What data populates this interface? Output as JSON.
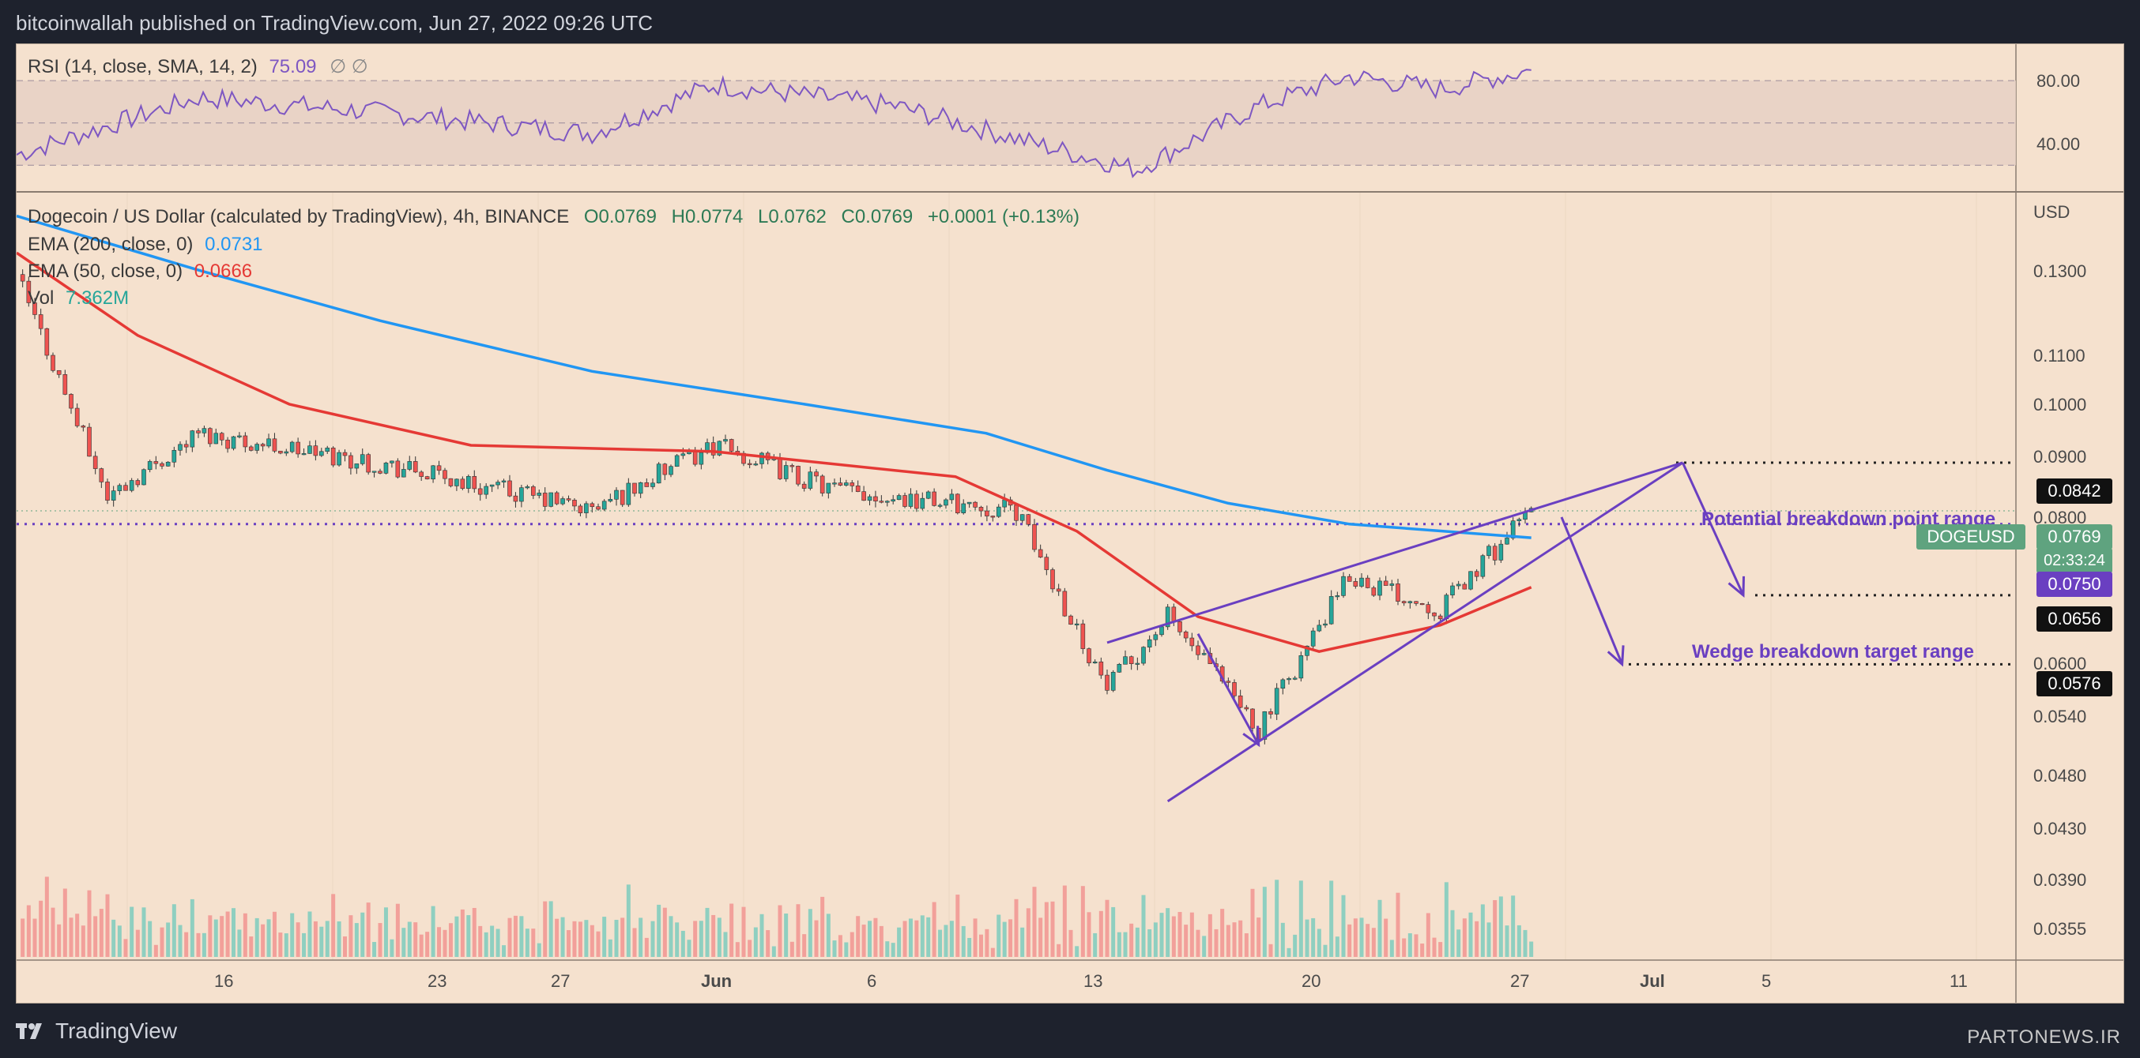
{
  "header": {
    "publisher": "bitcoinwallah published on TradingView.com, Jun 27, 2022 09:26 UTC"
  },
  "footer": {
    "brand": "TradingView",
    "watermark": "PARTONEWS.IR"
  },
  "rsi_panel": {
    "label": "RSI (14, close, SMA, 14, 2)",
    "value": "75.09",
    "suffix": "∅  ∅",
    "levels": [
      "80.00",
      "40.00"
    ],
    "band": [
      30,
      70
    ],
    "mid": 50
  },
  "main_panel": {
    "title": "Dogecoin / US Dollar (calculated by TradingView), 4h, BINANCE",
    "ohlc": {
      "o": "O0.0769",
      "h": "H0.0774",
      "l": "L0.0762",
      "c": "C0.0769",
      "chg": "+0.0001 (+0.13%)"
    },
    "ema200": {
      "label": "EMA (200, close, 0)",
      "value": "0.0731",
      "color": "#2196f3"
    },
    "ema50": {
      "label": "EMA (50, close, 0)",
      "value": "0.0666",
      "color": "#e53935"
    },
    "vol": {
      "label": "Vol",
      "value": "7.362M",
      "color": "#26a69a"
    },
    "currency": "USD",
    "price_ticks": [
      "0.1300",
      "0.1100",
      "0.1000",
      "0.0900",
      "0.0800",
      "0.0600",
      "0.0540",
      "0.0480",
      "0.0430",
      "0.0390",
      "0.0355"
    ],
    "time_ticks": [
      "16",
      "23",
      "27",
      "Jun",
      "6",
      "13",
      "20",
      "27",
      "Jul",
      "5",
      "11"
    ],
    "price_tags": {
      "level_0842": "0.0842",
      "symbol": "DOGEUSD",
      "last": "0.0769",
      "countdown": "02:33:24",
      "level_0750": "0.0750",
      "level_0656": "0.0656",
      "level_0576": "0.0576"
    },
    "annotations": {
      "breakdown_point": "Potential breakdown point range",
      "target": "Wedge breakdown target range"
    },
    "colors": {
      "up": "#26a69a",
      "down": "#ef5350",
      "wedge": "#6a3fc1",
      "background": "#f5e1ce"
    }
  },
  "chart_data": {
    "type": "line",
    "x_axis": "date (4h candles)",
    "y_axis_scale": "log",
    "ylim": [
      0.033,
      0.14
    ],
    "series": [
      {
        "name": "EMA (200, close, 0)",
        "points": [
          [
            "May 8",
            0.134
          ],
          [
            "May 14",
            0.121
          ],
          [
            "May 20",
            0.11
          ],
          [
            "May 27",
            0.1
          ],
          [
            "Jun 3",
            0.094
          ],
          [
            "Jun 9",
            0.089
          ],
          [
            "Jun 13",
            0.083
          ],
          [
            "Jun 17",
            0.078
          ],
          [
            "Jun 21",
            0.075
          ],
          [
            "Jun 27",
            0.0731
          ]
        ]
      },
      {
        "name": "EMA (50, close, 0)",
        "points": [
          [
            "May 8",
            0.125
          ],
          [
            "May 12",
            0.107
          ],
          [
            "May 17",
            0.094
          ],
          [
            "May 23",
            0.087
          ],
          [
            "May 31",
            0.086
          ],
          [
            "Jun 8",
            0.082
          ],
          [
            "Jun 12",
            0.074
          ],
          [
            "Jun 16",
            0.063
          ],
          [
            "Jun 20",
            0.059
          ],
          [
            "Jun 24",
            0.062
          ],
          [
            "Jun 27",
            0.0666
          ]
        ]
      },
      {
        "name": "DOGEUSD close",
        "points": [
          [
            "May 8",
            0.12
          ],
          [
            "May 11",
            0.079
          ],
          [
            "May 14",
            0.089
          ],
          [
            "May 20",
            0.084
          ],
          [
            "May 27",
            0.077
          ],
          [
            "May 31",
            0.087
          ],
          [
            "Jun 4",
            0.08
          ],
          [
            "Jun 10",
            0.077
          ],
          [
            "Jun 13",
            0.055
          ],
          [
            "Jun 15",
            0.063
          ],
          [
            "Jun 18",
            0.051
          ],
          [
            "Jun 21",
            0.068
          ],
          [
            "Jun 24",
            0.064
          ],
          [
            "Jun 27",
            0.0769
          ]
        ]
      }
    ],
    "price_lines": [
      0.0842,
      0.075,
      0.0656,
      0.0576
    ],
    "rsi": {
      "levels": [
        30,
        50,
        70
      ],
      "points": [
        [
          "May 8",
          35
        ],
        [
          "May 14",
          62
        ],
        [
          "May 20",
          55
        ],
        [
          "May 27",
          45
        ],
        [
          "May 31",
          68
        ],
        [
          "Jun 6",
          58
        ],
        [
          "Jun 12",
          35
        ],
        [
          "Jun 14",
          28
        ],
        [
          "Jun 18",
          58
        ],
        [
          "Jun 21",
          72
        ],
        [
          "Jun 24",
          66
        ],
        [
          "Jun 27",
          75
        ]
      ]
    }
  }
}
